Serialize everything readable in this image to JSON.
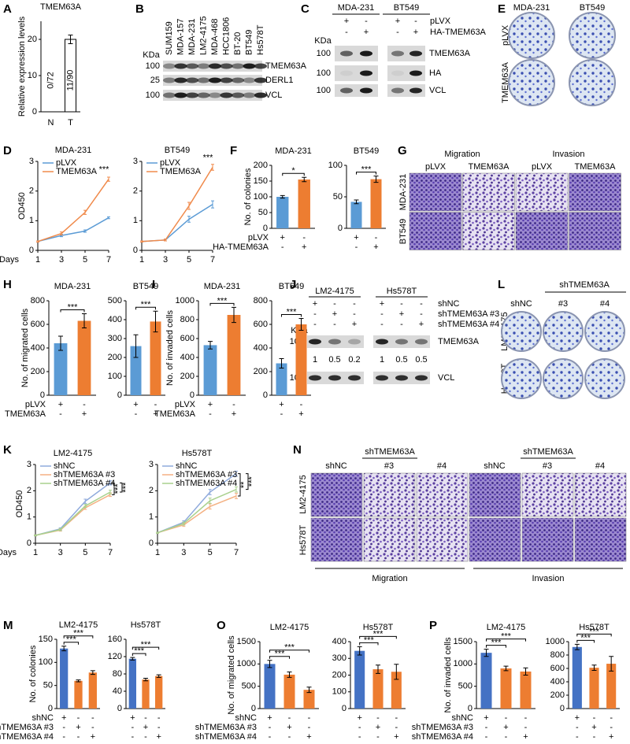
{
  "panel_letters": [
    "A",
    "B",
    "C",
    "D",
    "E",
    "F",
    "G",
    "H",
    "I",
    "J",
    "K",
    "L",
    "M",
    "N",
    "O",
    "P"
  ],
  "panel_B": {
    "lanes": [
      "SUM159",
      "MDA-157",
      "MDA-231",
      "LM2-4175",
      "MDA-468",
      "HCC1806",
      "BT-20",
      "BT549",
      "Hs578T"
    ],
    "kda_label": "KDa",
    "markers": [
      "100",
      "25",
      "100"
    ],
    "bands": [
      "TMEM63A",
      "DERL1",
      "VCL"
    ]
  },
  "panel_C": {
    "groups": [
      "MDA-231",
      "BT549"
    ],
    "conditions": [
      {
        "label": "pLVX",
        "signs": [
          "+",
          "-",
          "+",
          "-"
        ]
      },
      {
        "label": "HA-TMEM63A",
        "signs": [
          "-",
          "+",
          "-",
          "+"
        ]
      }
    ],
    "kda_label": "KDa",
    "markers": [
      "100",
      "100",
      "100"
    ],
    "bands": [
      "TMEM63A",
      "HA",
      "VCL"
    ]
  },
  "panel_E": {
    "columns": [
      "MDA-231",
      "BT549"
    ],
    "rows": [
      "pLVX",
      "TMEM63A"
    ]
  },
  "panel_G": {
    "groups": [
      "Migration",
      "Invasion"
    ],
    "columns": [
      "pLVX",
      "TMEM63A",
      "pLVX",
      "TMEM63A"
    ],
    "rows": [
      "MDA-231",
      "BT549"
    ]
  },
  "panel_J": {
    "groups": [
      "LM2-4175",
      "Hs578T"
    ],
    "conditions": [
      {
        "label": "shNC",
        "signs": [
          "+",
          "-",
          "-",
          "+",
          "-",
          "-"
        ]
      },
      {
        "label": "shTMEM63A #3",
        "signs": [
          "-",
          "+",
          "-",
          "-",
          "+",
          "-"
        ]
      },
      {
        "label": "shTMEM63A #4",
        "signs": [
          "-",
          "-",
          "+",
          "-",
          "-",
          "+"
        ]
      }
    ],
    "kda_label": "KDa",
    "markers": [
      "100",
      "100"
    ],
    "bands": [
      "TMEM63A",
      "VCL"
    ],
    "quantification": [
      1,
      0.5,
      0.2,
      1,
      0.5,
      0.5
    ]
  },
  "panel_L": {
    "group": "shTMEM63A",
    "columns": [
      "shNC",
      "#3",
      "#4"
    ],
    "rows": [
      "LM2-4175",
      "Hs578T"
    ]
  },
  "panel_N": {
    "groups_top": [
      "shTMEM63A",
      "shTMEM63A"
    ],
    "columns": [
      "shNC",
      "#3",
      "#4",
      "shNC",
      "#3",
      "#4"
    ],
    "rows": [
      "LM2-4175",
      "Hs578T"
    ],
    "groups_bottom": [
      "Migration",
      "Invasion"
    ]
  },
  "chart_data": [
    {
      "type": "bar",
      "title": "TMEM63A",
      "ylabel": "Relative expression levels",
      "categories": [
        "N",
        "T"
      ],
      "values": [
        0,
        20
      ],
      "errors": [
        0,
        1.2
      ],
      "colors": [
        "#ffffff",
        "#ffffff"
      ],
      "edgecolor": "#000000",
      "bar_texts": [
        "0/72",
        "11/90"
      ],
      "ylim": [
        0,
        25
      ],
      "yticks": [
        0,
        10,
        20
      ]
    },
    {
      "type": "line",
      "title": "MDA-231",
      "ylabel": "OD450",
      "xlabel": "Days",
      "x": [
        1,
        3,
        5,
        7
      ],
      "xlim": [
        1,
        7
      ],
      "xticks": [
        1,
        3,
        5,
        7
      ],
      "ylim": [
        0,
        3
      ],
      "yticks": [
        0,
        1,
        2,
        3
      ],
      "series": [
        {
          "name": "pLVX",
          "color": "#5b9bd5",
          "values": [
            0.3,
            0.5,
            0.65,
            1.1
          ],
          "errors": [
            0.02,
            0.04,
            0.04,
            0.03
          ]
        },
        {
          "name": "TMEM63A",
          "color": "#f08a4b",
          "values": [
            0.3,
            0.57,
            1.28,
            2.4
          ],
          "errors": [
            0.02,
            0.05,
            0.07,
            0.07
          ]
        }
      ],
      "annotations": [
        "***"
      ]
    },
    {
      "type": "line",
      "title": "BT549",
      "x": [
        1,
        3,
        5,
        7
      ],
      "xlim": [
        1,
        7
      ],
      "xticks": [
        1,
        3,
        5,
        7
      ],
      "ylim": [
        0,
        3
      ],
      "yticks": [
        0,
        1,
        2,
        3
      ],
      "series": [
        {
          "name": "pLVX",
          "color": "#5b9bd5",
          "values": [
            0.3,
            0.35,
            1.05,
            1.55
          ],
          "errors": [
            0.02,
            0.03,
            0.1,
            0.12
          ]
        },
        {
          "name": "TMEM63A",
          "color": "#f08a4b",
          "values": [
            0.3,
            0.35,
            1.5,
            2.8
          ],
          "errors": [
            0.02,
            0.03,
            0.12,
            0.1
          ]
        }
      ],
      "annotations": [
        "***"
      ]
    },
    {
      "type": "bar",
      "title": "MDA-231",
      "ylabel": "No. of colonies",
      "values": [
        100,
        155
      ],
      "errors": [
        4,
        7
      ],
      "colors": [
        "#5b9bd5",
        "#ed7d31"
      ],
      "ylim": [
        0,
        200
      ],
      "yticks": [
        0,
        50,
        100,
        150,
        200
      ],
      "annotations": [
        "*"
      ],
      "condition_labels": [
        "pLVX",
        "HA-TMEM63A"
      ],
      "signs": [
        [
          "+",
          "-"
        ],
        [
          "-",
          "+"
        ]
      ]
    },
    {
      "type": "bar",
      "title": "BT549",
      "values": [
        42,
        78
      ],
      "errors": [
        3,
        5
      ],
      "colors": [
        "#5b9bd5",
        "#ed7d31"
      ],
      "ylim": [
        0,
        100
      ],
      "yticks": [
        0,
        50,
        100
      ],
      "annotations": [
        "***"
      ],
      "signs": [
        [
          "+",
          "-"
        ],
        [
          "-",
          "+"
        ]
      ]
    },
    {
      "type": "bar",
      "title": "MDA-231",
      "ylabel": "No. of migrated cells",
      "values": [
        440,
        630
      ],
      "errors": [
        60,
        60
      ],
      "colors": [
        "#5b9bd5",
        "#ed7d31"
      ],
      "ylim": [
        0,
        800
      ],
      "yticks": [
        0,
        200,
        400,
        600,
        800
      ],
      "annotations": [
        "***"
      ],
      "condition_labels": [
        "pLVX",
        "TMEM63A"
      ],
      "signs": [
        [
          "+",
          "-"
        ],
        [
          "-",
          "+"
        ]
      ]
    },
    {
      "type": "bar",
      "title": "BT549",
      "values": [
        260,
        390
      ],
      "errors": [
        60,
        55
      ],
      "colors": [
        "#5b9bd5",
        "#ed7d31"
      ],
      "ylim": [
        0,
        500
      ],
      "yticks": [
        0,
        100,
        200,
        300,
        400,
        500
      ],
      "annotations": [
        "***"
      ],
      "signs": [
        [
          "+",
          "-"
        ],
        [
          "-",
          "+"
        ]
      ]
    },
    {
      "type": "bar",
      "title": "MDA-231",
      "ylabel": "No. of invaded cells",
      "values": [
        530,
        850
      ],
      "errors": [
        40,
        80
      ],
      "colors": [
        "#5b9bd5",
        "#ed7d31"
      ],
      "ylim": [
        0,
        1000
      ],
      "yticks": [
        0,
        200,
        400,
        600,
        800,
        1000
      ],
      "annotations": [
        "***"
      ],
      "condition_labels": [
        "pLVX",
        "TMEM63A"
      ],
      "signs": [
        [
          "+",
          "-"
        ],
        [
          "-",
          "+"
        ]
      ]
    },
    {
      "type": "bar",
      "title": "BT549",
      "values": [
        270,
        600
      ],
      "errors": [
        40,
        50
      ],
      "colors": [
        "#5b9bd5",
        "#ed7d31"
      ],
      "ylim": [
        0,
        800
      ],
      "yticks": [
        0,
        200,
        400,
        600,
        800
      ],
      "annotations": [
        "***"
      ],
      "signs": [
        [
          "+",
          "-"
        ],
        [
          "-",
          "+"
        ]
      ]
    },
    {
      "type": "line",
      "title": "LM2-4175",
      "ylabel": "OD450",
      "xlabel": "Days",
      "x": [
        1,
        3,
        5,
        7
      ],
      "xlim": [
        1,
        7
      ],
      "xticks": [
        1,
        3,
        5,
        7
      ],
      "ylim": [
        0,
        3
      ],
      "yticks": [
        0,
        1,
        2,
        3
      ],
      "series": [
        {
          "name": "shNC",
          "color": "#8faadc",
          "values": [
            0.3,
            0.55,
            1.6,
            2.3
          ],
          "errors": [
            0.02,
            0.04,
            0.08,
            0.08
          ]
        },
        {
          "name": "shTMEM63A #3",
          "color": "#f4b183",
          "values": [
            0.3,
            0.5,
            1.35,
            1.85
          ],
          "errors": [
            0.02,
            0.04,
            0.06,
            0.07
          ]
        },
        {
          "name": "shTMEM63A #4",
          "color": "#a9d18e",
          "values": [
            0.3,
            0.52,
            1.42,
            1.95
          ],
          "errors": [
            0.02,
            0.04,
            0.06,
            0.07
          ]
        }
      ],
      "annotations": [
        "***",
        "***"
      ]
    },
    {
      "type": "line",
      "title": "Hs578T",
      "x": [
        1,
        3,
        5,
        7
      ],
      "xlim": [
        1,
        7
      ],
      "xticks": [
        1,
        3,
        5,
        7
      ],
      "ylim": [
        0,
        3
      ],
      "yticks": [
        0,
        1,
        2,
        3
      ],
      "series": [
        {
          "name": "shNC",
          "color": "#8faadc",
          "values": [
            0.4,
            0.8,
            1.95,
            2.65
          ],
          "errors": [
            0.02,
            0.06,
            0.1,
            0.1
          ]
        },
        {
          "name": "shTMEM63A #3",
          "color": "#f4b183",
          "values": [
            0.4,
            0.7,
            1.4,
            1.8
          ],
          "errors": [
            0.02,
            0.06,
            0.1,
            0.1
          ]
        },
        {
          "name": "shTMEM63A #4",
          "color": "#a9d18e",
          "values": [
            0.4,
            0.75,
            1.62,
            2.05
          ],
          "errors": [
            0.02,
            0.06,
            0.1,
            0.1
          ]
        }
      ],
      "annotations": [
        "**",
        "***"
      ]
    },
    {
      "type": "bar",
      "title": "LM2-4175",
      "ylabel": "No. of colonies",
      "values": [
        130,
        60,
        78
      ],
      "errors": [
        5,
        2,
        4
      ],
      "colors": [
        "#4472c4",
        "#ed7d31",
        "#ed7d31"
      ],
      "ylim": [
        0,
        150
      ],
      "yticks": [
        0,
        50,
        100,
        150
      ],
      "annotations": [
        "***",
        "***"
      ],
      "condition_labels": [
        "shNC",
        "shTMEM63A #3",
        "shTMEM63A #4"
      ],
      "signs": [
        [
          "+",
          "-",
          "-"
        ],
        [
          "-",
          "+",
          "-"
        ],
        [
          "-",
          "-",
          "+"
        ]
      ]
    },
    {
      "type": "bar",
      "title": "Hs578T",
      "values": [
        115,
        67,
        75
      ],
      "errors": [
        3,
        3,
        3
      ],
      "colors": [
        "#4472c4",
        "#ed7d31",
        "#ed7d31"
      ],
      "ylim": [
        0,
        160
      ],
      "yticks": [
        0,
        40,
        80,
        120,
        160
      ],
      "annotations": [
        "***",
        "***"
      ],
      "signs": [
        [
          "+",
          "-",
          "-"
        ],
        [
          "-",
          "+",
          "-"
        ],
        [
          "-",
          "-",
          "+"
        ]
      ]
    },
    {
      "type": "bar",
      "title": "LM2-4175",
      "ylabel": "No. of migrated cells",
      "values": [
        1000,
        760,
        420
      ],
      "errors": [
        80,
        60,
        60
      ],
      "colors": [
        "#4472c4",
        "#ed7d31",
        "#ed7d31"
      ],
      "ylim": [
        0,
        1500
      ],
      "yticks": [
        0,
        500,
        1000,
        1500
      ],
      "annotations": [
        "***",
        "***"
      ],
      "condition_labels": [
        "shNC",
        "shTMEM63A #3",
        "shTMEM63A #4"
      ],
      "signs": [
        [
          "+",
          "-",
          "-"
        ],
        [
          "-",
          "+",
          "-"
        ],
        [
          "-",
          "-",
          "+"
        ]
      ]
    },
    {
      "type": "bar",
      "title": "Hs578T",
      "values": [
        345,
        235,
        220
      ],
      "errors": [
        25,
        25,
        45
      ],
      "colors": [
        "#4472c4",
        "#ed7d31",
        "#ed7d31"
      ],
      "ylim": [
        0,
        400
      ],
      "yticks": [
        0,
        100,
        200,
        300,
        400
      ],
      "annotations": [
        "***",
        "***"
      ],
      "signs": [
        [
          "+",
          "-",
          "-"
        ],
        [
          "-",
          "+",
          "-"
        ],
        [
          "-",
          "-",
          "+"
        ]
      ]
    },
    {
      "type": "bar",
      "title": "LM2-4175",
      "ylabel": "No. of invaded cells",
      "values": [
        1250,
        900,
        830
      ],
      "errors": [
        80,
        50,
        80
      ],
      "colors": [
        "#4472c4",
        "#ed7d31",
        "#ed7d31"
      ],
      "ylim": [
        0,
        1500
      ],
      "yticks": [
        0,
        500,
        1000,
        1500
      ],
      "annotations": [
        "***",
        "***"
      ],
      "condition_labels": [
        "shNC",
        "shTMEM63A #3",
        "shTMEM63A #4"
      ],
      "signs": [
        [
          "+",
          "-",
          "-"
        ],
        [
          "-",
          "+",
          "-"
        ],
        [
          "-",
          "-",
          "+"
        ]
      ]
    },
    {
      "type": "bar",
      "title": "Hs578T",
      "values": [
        920,
        610,
        670
      ],
      "errors": [
        40,
        40,
        110
      ],
      "colors": [
        "#4472c4",
        "#ed7d31",
        "#ed7d31"
      ],
      "ylim": [
        0,
        1000
      ],
      "yticks": [
        0,
        200,
        400,
        600,
        800,
        1000
      ],
      "annotations": [
        "***",
        "***"
      ],
      "signs": [
        [
          "+",
          "-",
          "-"
        ],
        [
          "-",
          "+",
          "-"
        ],
        [
          "-",
          "-",
          "+"
        ]
      ]
    }
  ]
}
